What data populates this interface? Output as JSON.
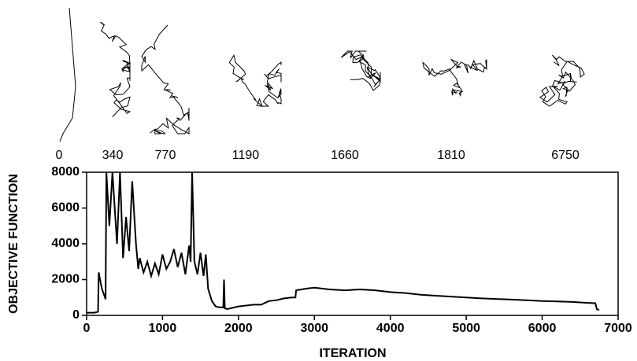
{
  "chart_data": {
    "type": "line",
    "x_label": "ITERATION",
    "y_label": "OBJECTIVE FUNCTION",
    "snapshots": [
      "0",
      "340",
      "770",
      "1190",
      "1660",
      "1810",
      "6750"
    ],
    "x": [
      0,
      100,
      150,
      160,
      200,
      250,
      260,
      300,
      340,
      400,
      440,
      480,
      520,
      560,
      600,
      650,
      680,
      700,
      750,
      800,
      850,
      900,
      950,
      1000,
      1050,
      1100,
      1150,
      1200,
      1250,
      1300,
      1350,
      1370,
      1390,
      1420,
      1460,
      1500,
      1540,
      1570,
      1600,
      1650,
      1700,
      1750,
      1800,
      1810,
      1820,
      1850,
      1900,
      2000,
      2100,
      2200,
      2300,
      2400,
      2500,
      2600,
      2700,
      2750,
      2760,
      2900,
      3000,
      3100,
      3200,
      3400,
      3600,
      3800,
      4000,
      4200,
      4400,
      4600,
      4800,
      5000,
      5200,
      5500,
      5800,
      6000,
      6200,
      6400,
      6600,
      6700,
      6720,
      6750
    ],
    "values": [
      150,
      150,
      200,
      2400,
      1500,
      900,
      8000,
      5000,
      8000,
      4000,
      8000,
      3200,
      5500,
      3600,
      7500,
      4000,
      2600,
      3200,
      2400,
      3000,
      2200,
      2900,
      2300,
      3400,
      2600,
      3000,
      3700,
      2700,
      3500,
      2300,
      3900,
      3000,
      8000,
      3000,
      2300,
      3500,
      2200,
      3400,
      1500,
      800,
      500,
      450,
      450,
      2000,
      400,
      350,
      400,
      500,
      550,
      600,
      600,
      800,
      850,
      950,
      1000,
      1000,
      1400,
      1500,
      1550,
      1500,
      1450,
      1400,
      1450,
      1400,
      1300,
      1250,
      1150,
      1100,
      1050,
      1000,
      950,
      900,
      850,
      800,
      780,
      750,
      700,
      680,
      350,
      300
    ],
    "color": "#000000",
    "xlim": [
      0,
      7000
    ],
    "xticks": [
      0,
      1000,
      2000,
      3000,
      4000,
      5000,
      6000,
      7000
    ],
    "ylim": [
      0,
      8000
    ],
    "yticks": [
      0,
      2000,
      4000,
      6000,
      8000
    ]
  }
}
